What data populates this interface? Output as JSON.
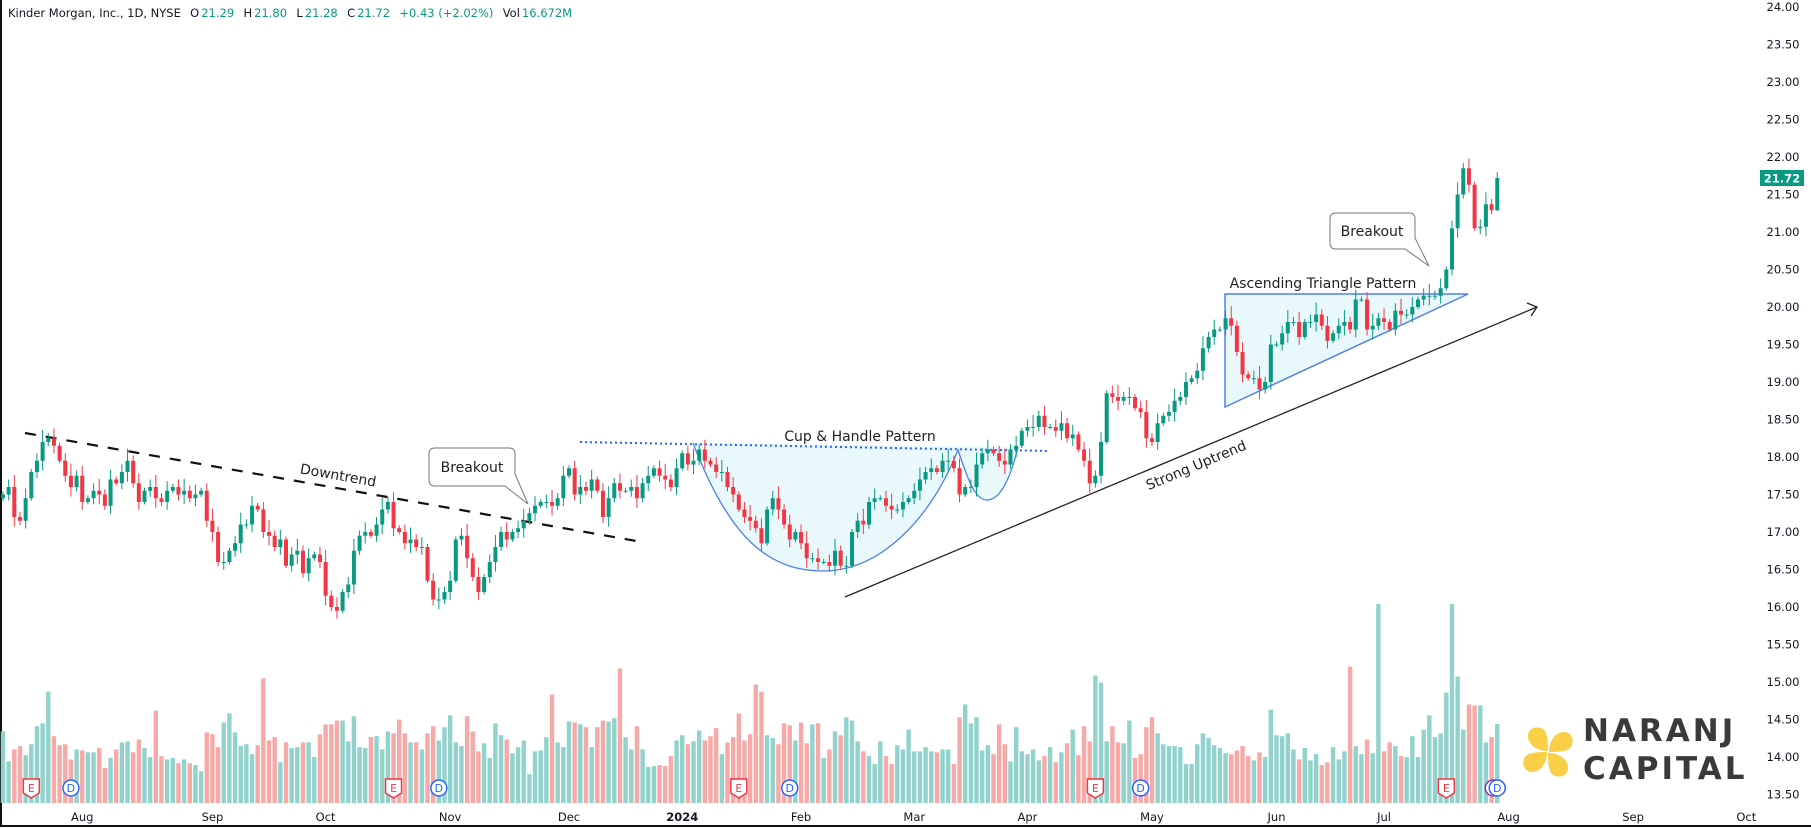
{
  "legend": {
    "symbol": "Kinder Morgan, Inc., 1D, NYSE",
    "open_label": "O",
    "open": "21.29",
    "high_label": "H",
    "high": "21.80",
    "low_label": "L",
    "low": "21.28",
    "close_label": "C",
    "close": "21.72",
    "change": "+0.43 (+2.02%)",
    "vol_label": "Vol",
    "vol": "16.672M"
  },
  "colors": {
    "up": "#089981",
    "down": "#f23645",
    "vol_up": "#92d2cc",
    "vol_down": "#f7a9a7",
    "pattern_stroke": "#4f7ff0",
    "pattern_fill": "#e9f8fa",
    "logo_yellow": "#f9cf48"
  },
  "annotations": {
    "downtrend": "Downtrend",
    "breakout_1": "Breakout",
    "cup_handle": "Cup & Handle Pattern",
    "strong_uptrend": "Strong Uptrend",
    "ascending_triangle": "Ascending Triangle Pattern",
    "breakout_2": "Breakout"
  },
  "logo": {
    "line1": "NARANJ",
    "line2": "CAPITAL"
  },
  "chart_data": {
    "type": "candlestick",
    "title": "Kinder Morgan, Inc., 1D, NYSE",
    "period": "Jul 2023 - Jul 2024",
    "ylim": [
      13.5,
      24.0
    ],
    "y_ticks": [
      "24.00",
      "23.50",
      "23.00",
      "22.50",
      "22.00",
      "21.50",
      "21.00",
      "20.50",
      "20.00",
      "19.50",
      "19.00",
      "18.50",
      "18.00",
      "17.50",
      "17.00",
      "16.50",
      "16.00",
      "15.50",
      "15.00",
      "14.50",
      "14.00",
      "13.50"
    ],
    "x_ticks": [
      {
        "label": "Aug",
        "bar": 14
      },
      {
        "label": "Sep",
        "bar": 37
      },
      {
        "label": "Oct",
        "bar": 57
      },
      {
        "label": "Nov",
        "bar": 79
      },
      {
        "label": "Dec",
        "bar": 100
      },
      {
        "label": "2024",
        "bar": 120,
        "bold": true
      },
      {
        "label": "Feb",
        "bar": 141
      },
      {
        "label": "Mar",
        "bar": 161
      },
      {
        "label": "Apr",
        "bar": 181
      },
      {
        "label": "May",
        "bar": 203
      },
      {
        "label": "Jun",
        "bar": 225
      },
      {
        "label": "Jul",
        "bar": 244
      },
      {
        "label": "Aug",
        "bar": 266
      },
      {
        "label": "Sep",
        "bar": 288
      },
      {
        "label": "Oct",
        "bar": 308
      }
    ],
    "last_price": "21.72",
    "first_open": 17.45,
    "last_bar": {
      "open": 21.29,
      "high": 21.8,
      "low": 21.28,
      "close": 21.72
    },
    "closes": [
      17.5,
      17.6,
      17.2,
      17.15,
      17.45,
      17.8,
      17.95,
      18.2,
      18.25,
      18.15,
      17.95,
      17.75,
      17.6,
      17.75,
      17.4,
      17.45,
      17.55,
      17.5,
      17.35,
      17.7,
      17.65,
      17.8,
      17.95,
      17.65,
      17.4,
      17.55,
      17.6,
      17.45,
      17.4,
      17.55,
      17.6,
      17.5,
      17.55,
      17.45,
      17.5,
      17.55,
      17.15,
      17.0,
      16.6,
      16.6,
      16.75,
      16.85,
      17.1,
      17.1,
      17.35,
      17.3,
      17.0,
      16.95,
      16.8,
      16.9,
      16.55,
      16.7,
      16.75,
      16.45,
      16.65,
      16.7,
      16.6,
      16.15,
      16.0,
      15.95,
      16.2,
      16.3,
      16.75,
      16.95,
      17.0,
      16.95,
      17.1,
      17.3,
      17.4,
      17.05,
      17.0,
      16.85,
      16.9,
      16.8,
      16.8,
      16.35,
      16.1,
      16.1,
      16.2,
      16.35,
      16.9,
      16.95,
      16.65,
      16.4,
      16.2,
      16.4,
      16.6,
      16.8,
      17.0,
      16.9,
      17.0,
      17.05,
      17.15,
      17.25,
      17.35,
      17.4,
      17.4,
      17.35,
      17.45,
      17.75,
      17.85,
      17.5,
      17.6,
      17.55,
      17.7,
      17.55,
      17.2,
      17.45,
      17.65,
      17.55,
      17.55,
      17.6,
      17.45,
      17.65,
      17.75,
      17.85,
      17.75,
      17.7,
      17.6,
      17.85,
      18.05,
      17.9,
      17.95,
      18.1,
      17.95,
      17.9,
      17.8,
      17.8,
      17.6,
      17.5,
      17.3,
      17.2,
      17.15,
      17.05,
      16.85,
      17.3,
      17.45,
      17.3,
      17.1,
      16.9,
      17.0,
      16.85,
      16.65,
      16.65,
      16.6,
      16.6,
      16.55,
      16.75,
      16.55,
      16.55,
      17.0,
      17.15,
      17.1,
      17.4,
      17.45,
      17.45,
      17.35,
      17.3,
      17.3,
      17.4,
      17.45,
      17.55,
      17.7,
      17.8,
      17.85,
      17.8,
      17.95,
      17.95,
      17.85,
      17.5,
      17.6,
      17.6,
      17.9,
      18.05,
      18.1,
      18.05,
      17.95,
      17.9,
      18.1,
      18.15,
      18.35,
      18.4,
      18.4,
      18.55,
      18.4,
      18.4,
      18.35,
      18.45,
      18.25,
      18.3,
      18.1,
      17.95,
      17.65,
      17.75,
      18.2,
      18.85,
      18.8,
      18.75,
      18.8,
      18.8,
      18.65,
      18.6,
      18.25,
      18.2,
      18.45,
      18.55,
      18.6,
      18.75,
      18.8,
      19.0,
      19.05,
      19.15,
      19.45,
      19.6,
      19.7,
      19.7,
      19.85,
      19.75,
      19.4,
      19.1,
      19.05,
      19.05,
      18.9,
      19.0,
      19.5,
      19.5,
      19.65,
      19.8,
      19.8,
      19.6,
      19.8,
      19.8,
      19.9,
      19.75,
      19.55,
      19.65,
      19.75,
      19.8,
      19.7,
      20.1,
      20.1,
      19.7,
      19.75,
      19.85,
      19.8,
      19.7,
      19.95,
      19.9,
      19.9,
      20.0,
      20.1,
      20.15,
      20.15,
      20.15,
      20.25,
      20.5,
      21.05,
      21.5,
      21.85,
      21.63,
      21.05,
      21.07,
      21.37,
      21.29,
      21.72
    ],
    "volume_millions": [
      15.1,
      8.8,
      11.3,
      12.0,
      10.1,
      12.4,
      16.2,
      16.8,
      23.5,
      14.1,
      12.2,
      12.4,
      9.2,
      11.3,
      11.1,
      10.7,
      10.7,
      11.6,
      7.4,
      9.5,
      11.3,
      12.8,
      13.0,
      10.7,
      13.4,
      11.6,
      9.7,
      19.5,
      9.9,
      9.2,
      9.5,
      8.4,
      9.2,
      8.4,
      8.0,
      6.7,
      14.9,
      14.5,
      11.8,
      17.0,
      18.9,
      14.9,
      12.0,
      12.4,
      10.3,
      12.2,
      26.3,
      13.2,
      13.9,
      8.6,
      12.8,
      11.6,
      11.8,
      12.8,
      12.8,
      9.7,
      14.5,
      16.6,
      16.6,
      17.4,
      17.4,
      13.0,
      18.3,
      11.8,
      11.6,
      13.9,
      14.1,
      11.3,
      15.1,
      14.7,
      17.6,
      14.7,
      12.8,
      12.8,
      11.3,
      14.7,
      16.2,
      13.2,
      16.0,
      18.5,
      12.8,
      12.0,
      18.3,
      15.1,
      10.9,
      12.6,
      9.5,
      16.8,
      14.3,
      13.4,
      10.5,
      11.8,
      13.2,
      6.1,
      10.9,
      11.1,
      13.9,
      22.9,
      12.8,
      11.8,
      17.2,
      17.0,
      16.6,
      16.0,
      11.8,
      16.0,
      17.4,
      17.2,
      17.9,
      28.4,
      13.9,
      11.3,
      16.2,
      11.3,
      7.6,
      7.8,
      8.0,
      7.8,
      9.9,
      13.2,
      14.3,
      12.4,
      13.0,
      15.3,
      13.2,
      14.1,
      15.8,
      10.3,
      12.8,
      13.9,
      18.9,
      13.2,
      14.5,
      25.0,
      23.5,
      14.3,
      13.7,
      12.4,
      16.8,
      16.4,
      13.2,
      17.0,
      12.6,
      16.6,
      16.8,
      9.5,
      11.3,
      15.1,
      14.3,
      18.1,
      17.4,
      13.0,
      10.9,
      9.9,
      8.2,
      13.0,
      9.9,
      8.2,
      12.2,
      11.3,
      15.5,
      10.9,
      10.9,
      11.8,
      10.9,
      10.7,
      11.3,
      11.3,
      8.2,
      18.1,
      20.8,
      16.8,
      18.1,
      11.1,
      12.2,
      10.3,
      16.6,
      12.4,
      8.8,
      16.0,
      10.9,
      10.3,
      11.3,
      9.0,
      9.9,
      11.8,
      8.6,
      10.7,
      12.6,
      15.5,
      10.1,
      16.2,
      13.0,
      26.9,
      25.4,
      13.0,
      16.2,
      12.8,
      12.6,
      17.4,
      9.5,
      10.3,
      16.0,
      18.1,
      14.7,
      12.4,
      12.0,
      12.0,
      11.8,
      8.2,
      8.2,
      12.4,
      14.7,
      13.7,
      12.2,
      11.6,
      10.5,
      10.3,
      11.1,
      12.0,
      9.9,
      9.0,
      10.7,
      9.7,
      19.7,
      14.3,
      14.1,
      14.7,
      11.3,
      9.2,
      11.6,
      9.0,
      10.3,
      8.0,
      8.6,
      11.8,
      9.2,
      10.9,
      28.8,
      12.0,
      10.3,
      13.4,
      10.5,
      42.0,
      10.9,
      12.8,
      12.0,
      9.9,
      9.7,
      14.1,
      9.7,
      15.5,
      18.5,
      13.9,
      14.7,
      23.3,
      42.0,
      26.7,
      15.5,
      20.8,
      20.6,
      20.6,
      12.8,
      13.9,
      16.672
    ],
    "events": [
      {
        "type": "E",
        "bar": 5
      },
      {
        "type": "D",
        "bar": 12
      },
      {
        "type": "E",
        "bar": 69
      },
      {
        "type": "D",
        "bar": 77
      },
      {
        "type": "E",
        "bar": 130
      },
      {
        "type": "D",
        "bar": 139
      },
      {
        "type": "E",
        "bar": 193
      },
      {
        "type": "D",
        "bar": 201
      },
      {
        "type": "E",
        "bar": 255
      },
      {
        "type": "D",
        "bar": 264
      }
    ],
    "trendlines": {
      "downtrend": {
        "from": {
          "bar": 4,
          "price": 18.33
        },
        "to": {
          "bar": 113,
          "price": 16.88
        }
      },
      "strong_uptrend": {
        "from": {
          "bar": 149,
          "price": 16.13
        },
        "to": {
          "bar": 271,
          "price": 20.0
        }
      },
      "cup_rim_price": 18.2,
      "triangle": {
        "resistance": 20.17,
        "support_start": {
          "bar": 216,
          "price": 18.67
        },
        "apex_bar": 259
      }
    }
  }
}
